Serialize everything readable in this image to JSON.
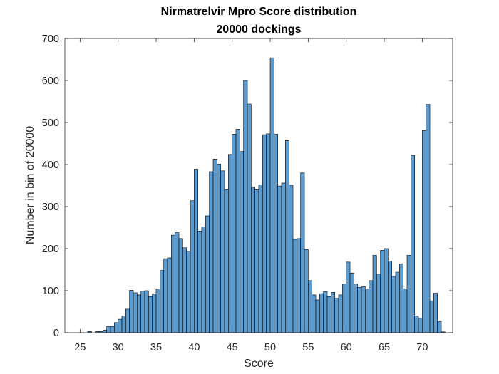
{
  "chart_data": {
    "type": "bar",
    "title": [
      "Nirmatrelvir   Mpro   Score distribution",
      "20000 dockings"
    ],
    "xlabel": "Score",
    "ylabel": "Number in bin of 20000",
    "xlim": [
      23,
      74
    ],
    "ylim": [
      0,
      700
    ],
    "xticks": [
      25,
      30,
      35,
      40,
      45,
      50,
      55,
      60,
      65,
      70
    ],
    "yticks": [
      0,
      100,
      200,
      300,
      400,
      500,
      600,
      700
    ],
    "grid": false,
    "bar_color": "#5b9bd0",
    "bin_width": 0.5,
    "bin_edges_start": 25.5,
    "values": [
      0,
      3,
      0,
      3,
      3,
      6,
      15,
      15,
      24,
      32,
      40,
      56,
      101,
      95,
      90,
      99,
      100,
      86,
      92,
      104,
      148,
      176,
      178,
      232,
      238,
      224,
      202,
      194,
      314,
      389,
      242,
      252,
      278,
      383,
      413,
      401,
      385,
      340,
      424,
      472,
      484,
      431,
      600,
      544,
      346,
      340,
      352,
      471,
      473,
      654,
      472,
      349,
      356,
      457,
      351,
      222,
      224,
      380,
      198,
      124,
      90,
      78,
      93,
      98,
      86,
      96,
      82,
      90,
      116,
      168,
      142,
      116,
      108,
      110,
      104,
      124,
      184,
      140,
      196,
      200,
      170,
      134,
      144,
      164,
      104,
      184,
      422,
      40,
      35,
      481,
      543,
      76,
      94,
      26,
      2,
      0
    ]
  }
}
